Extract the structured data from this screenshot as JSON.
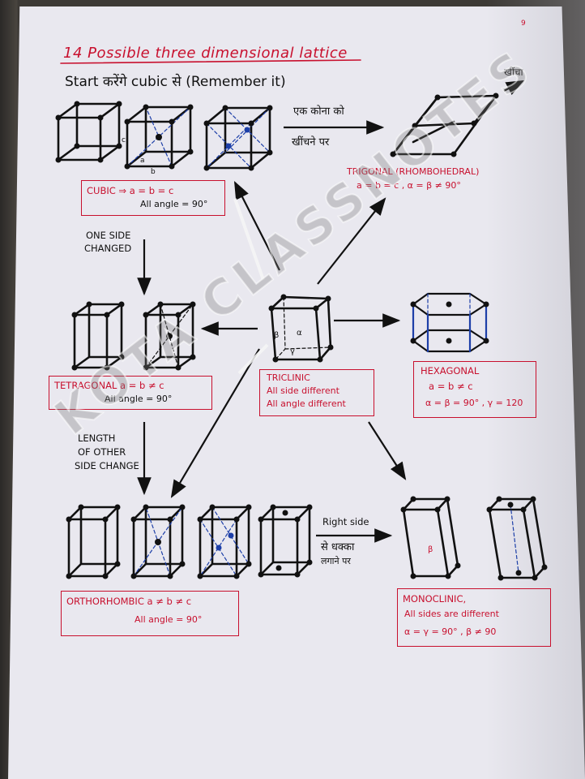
{
  "page_number": "9",
  "heading": {
    "title": "14 Possible three dimensional lattice",
    "subtitle": "Start करेंगे cubic से (Remember it)"
  },
  "cubic": {
    "name": "CUBIC ⇒ a = b = c",
    "angle": "All angle = 90°",
    "label_a": "a",
    "label_b": "b",
    "label_c": "c"
  },
  "stretch_note": {
    "line1": "एक कोना को",
    "line2": "खींचने पर"
  },
  "pull_note": "खींचा",
  "trigonal": {
    "name": "TRIGONAL (RHOMBOHEDRAL)",
    "relation": "a = b = c ,  α = β ≠ 90°"
  },
  "one_side_note": {
    "line1": "ONE SIDE",
    "line2": "CHANGED"
  },
  "tetragonal": {
    "name": "TETRAGONAL  a = b ≠ c",
    "angle": "All angle = 90°"
  },
  "triclinic": {
    "name": "TRICLINIC",
    "line1": "All side different",
    "line2": "All angle different",
    "alpha": "α",
    "beta": "β",
    "gamma": "γ"
  },
  "hexagonal": {
    "name": "HEXAGONAL",
    "relation": "a = b ≠ c",
    "angles": "α = β = 90° , γ = 120"
  },
  "other_side_note": {
    "line1": "LENGTH",
    "line2": "OF OTHER",
    "line3": "SIDE CHANGE"
  },
  "push_note": {
    "line1": "Right side",
    "line2": "से धक्का",
    "line3": "लगाने पर"
  },
  "orthorhombic": {
    "name": "ORTHORHOMBIC  a ≠ b ≠ c",
    "angle": "All angle = 90°"
  },
  "monoclinic": {
    "name": "MONOCLINIC,",
    "line1": "All sides are different",
    "line2": "α = γ = 90° ,  β ≠ 90",
    "beta": "β"
  },
  "watermark": "KOTA CLASSNOTES",
  "colors": {
    "ink_red": "#c8102e",
    "ink_black": "#111111",
    "ink_blue": "#1d3fa8",
    "paper": "#e9e8ef"
  }
}
